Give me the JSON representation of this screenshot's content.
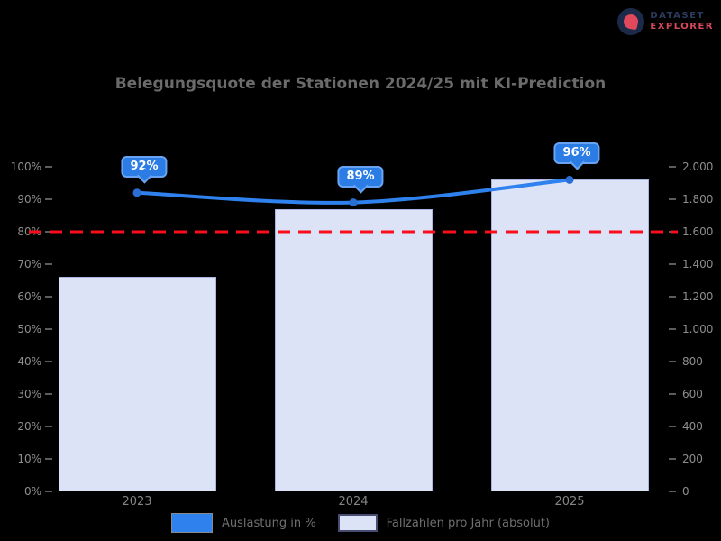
{
  "logo": {
    "line1": "DATASET",
    "line2": "EXPLORER"
  },
  "chart_data": {
    "type": "bar",
    "subtype": "combo-bar-line",
    "title": "Belegungsquote der Stationen 2024/25 mit KI-Prediction",
    "categories": [
      "2023",
      "2024",
      "2025"
    ],
    "series": [
      {
        "name": "Auslastung in %",
        "type": "line",
        "y_axis": "left",
        "values": [
          92,
          89,
          96
        ],
        "labels": [
          "92%",
          "89%",
          "96%"
        ],
        "color": "#2f81ed",
        "marker_color": "#2b6fd4"
      },
      {
        "name": "Fallzahlen pro Jahr (absolut)",
        "type": "bar",
        "y_axis": "right",
        "values": [
          1320,
          1740,
          1920
        ],
        "color": "#dde3f7",
        "border_color": "#aab6de"
      }
    ],
    "threshold_line": {
      "axis": "left",
      "value": 80,
      "color": "#fb0d1b",
      "style": "dashed"
    },
    "axes": {
      "left": {
        "range": [
          0,
          100
        ],
        "ticks": [
          "100%",
          "90%",
          "80%",
          "70%",
          "60%",
          "50%",
          "40%",
          "30%",
          "20%",
          "10%",
          "0%"
        ]
      },
      "right": {
        "range": [
          0,
          2000
        ],
        "ticks": [
          "2.000",
          "1.800",
          "1.600",
          "1.400",
          "1.200",
          "1.000",
          "800",
          "600",
          "400",
          "200",
          "0"
        ]
      }
    },
    "grid": false,
    "legend_position": "bottom",
    "background": "#000000"
  }
}
